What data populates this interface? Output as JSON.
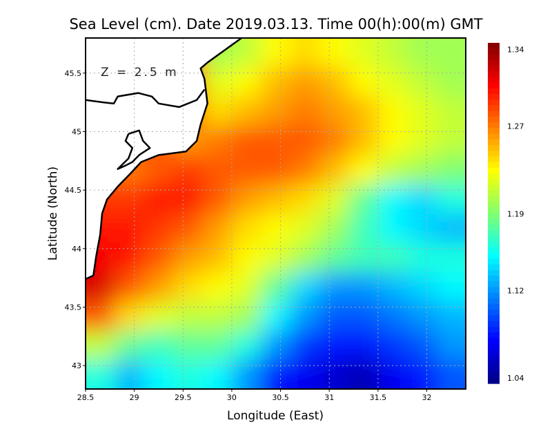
{
  "chart_data": {
    "type": "heatmap",
    "title": "Sea Level (cm). Date 2019.03.13. Time 00(h):00(m) GMT",
    "xlabel": "Longitude (East)",
    "ylabel": "Latitude (North)",
    "annotation": "Z = 2.5 m",
    "xlim": [
      28.5,
      32.4
    ],
    "ylim": [
      42.8,
      45.8
    ],
    "xticks": [
      "28.5",
      "29",
      "29.5",
      "30",
      "30.5",
      "31",
      "31.5",
      "32"
    ],
    "xtick_values": [
      28.5,
      29,
      29.5,
      30,
      30.5,
      31,
      31.5,
      32
    ],
    "yticks": [
      "43",
      "43.5",
      "44",
      "44.5",
      "45",
      "45.5"
    ],
    "ytick_values": [
      43,
      43.5,
      44,
      44.5,
      45,
      45.5
    ],
    "grid": true,
    "colorbar": {
      "labels": [
        "1.34",
        "1.27",
        "1.19",
        "1.12",
        "1.04"
      ],
      "label_values": [
        1.34,
        1.27,
        1.19,
        1.12,
        1.04
      ],
      "range": [
        1.035,
        1.346
      ],
      "colormap": "jet",
      "placement": "right"
    },
    "grid_lon": [
      28.65,
      28.95,
      29.25,
      29.55,
      29.85,
      30.15,
      30.45,
      30.75,
      31.05,
      31.35,
      31.65,
      31.95,
      32.25
    ],
    "grid_lat": [
      45.675,
      45.425,
      45.175,
      44.925,
      44.675,
      44.425,
      44.175,
      43.925,
      43.675,
      43.425,
      43.175,
      42.925
    ],
    "values": [
      [
        null,
        null,
        null,
        null,
        1.2,
        1.21,
        1.23,
        1.24,
        1.23,
        1.22,
        1.21,
        1.2,
        1.2
      ],
      [
        null,
        null,
        null,
        null,
        1.22,
        1.23,
        1.25,
        1.26,
        1.25,
        1.23,
        1.22,
        1.21,
        1.2
      ],
      [
        null,
        null,
        null,
        null,
        1.24,
        1.25,
        1.26,
        1.27,
        1.26,
        1.25,
        1.23,
        1.22,
        1.21
      ],
      [
        null,
        null,
        null,
        1.26,
        1.27,
        1.28,
        1.28,
        1.28,
        1.27,
        1.25,
        1.23,
        1.22,
        1.21
      ],
      [
        null,
        1.27,
        1.28,
        1.29,
        1.28,
        1.28,
        1.28,
        1.27,
        1.25,
        1.23,
        1.21,
        1.2,
        1.19
      ],
      [
        1.29,
        1.29,
        1.3,
        1.3,
        1.28,
        1.26,
        1.25,
        1.24,
        1.22,
        1.18,
        1.15,
        1.14,
        1.16
      ],
      [
        1.3,
        1.3,
        1.29,
        1.28,
        1.26,
        1.24,
        1.23,
        1.22,
        1.2,
        1.17,
        1.15,
        1.14,
        1.13
      ],
      [
        1.31,
        1.3,
        1.28,
        1.26,
        1.25,
        1.23,
        1.22,
        1.2,
        1.18,
        1.17,
        1.17,
        1.16,
        1.16
      ],
      [
        1.32,
        1.28,
        1.26,
        1.24,
        1.23,
        1.22,
        1.18,
        1.14,
        1.12,
        1.12,
        1.13,
        1.14,
        1.15
      ],
      [
        1.28,
        1.24,
        1.22,
        1.21,
        1.21,
        1.2,
        1.15,
        1.12,
        1.1,
        1.1,
        1.11,
        1.12,
        1.13
      ],
      [
        1.21,
        1.18,
        1.17,
        1.18,
        1.18,
        1.16,
        1.12,
        1.09,
        1.08,
        1.08,
        1.09,
        1.1,
        1.12
      ],
      [
        1.16,
        1.13,
        1.15,
        1.16,
        1.15,
        1.12,
        1.08,
        1.07,
        1.06,
        1.05,
        1.07,
        1.08,
        1.1
      ]
    ],
    "coastline": [
      [
        30.1,
        45.8
      ],
      [
        29.75,
        45.59
      ],
      [
        29.68,
        45.54
      ],
      [
        29.72,
        45.45
      ],
      [
        29.75,
        45.24
      ],
      [
        29.68,
        45.06
      ],
      [
        29.64,
        44.92
      ],
      [
        29.53,
        44.83
      ],
      [
        29.25,
        44.8
      ],
      [
        29.07,
        44.74
      ],
      [
        28.97,
        44.65
      ],
      [
        28.83,
        44.53
      ],
      [
        28.72,
        44.42
      ],
      [
        28.67,
        44.3
      ],
      [
        28.65,
        44.12
      ],
      [
        28.61,
        43.94
      ],
      [
        28.58,
        43.77
      ],
      [
        28.5,
        43.74
      ]
    ],
    "inland_lines": [
      [
        [
          28.5,
          45.27
        ],
        [
          28.68,
          45.25
        ],
        [
          28.79,
          45.24
        ],
        [
          28.83,
          45.3
        ],
        [
          29.04,
          45.33
        ],
        [
          29.18,
          45.3
        ],
        [
          29.25,
          45.24
        ],
        [
          29.46,
          45.21
        ],
        [
          29.64,
          45.27
        ],
        [
          29.72,
          45.36
        ]
      ],
      [
        [
          28.94,
          44.98
        ],
        [
          29.05,
          45.01
        ],
        [
          29.09,
          44.92
        ],
        [
          29.16,
          44.86
        ],
        [
          29.05,
          44.8
        ],
        [
          28.98,
          44.74
        ],
        [
          28.91,
          44.71
        ],
        [
          28.83,
          44.68
        ],
        [
          28.94,
          44.77
        ],
        [
          28.98,
          44.86
        ],
        [
          28.91,
          44.92
        ],
        [
          28.94,
          44.98
        ]
      ]
    ]
  }
}
